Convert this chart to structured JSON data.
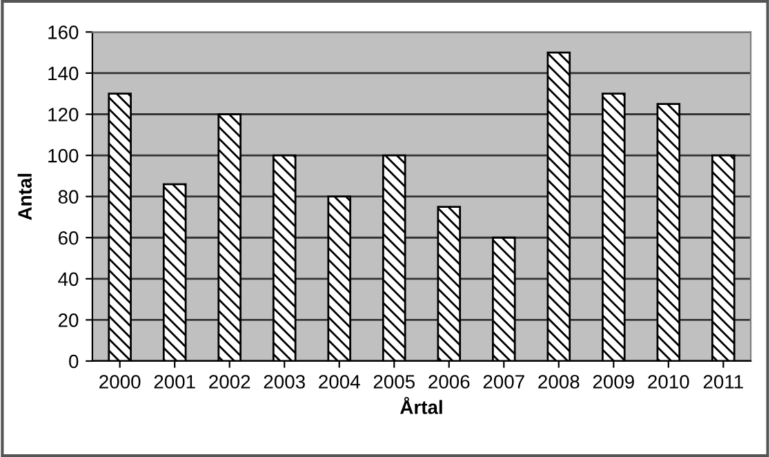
{
  "chart_data": {
    "type": "bar",
    "xlabel": "Årtal",
    "ylabel": "Antal",
    "categories": [
      "2000",
      "2001",
      "2002",
      "2003",
      "2004",
      "2005",
      "2006",
      "2007",
      "2008",
      "2009",
      "2010",
      "2011"
    ],
    "values": [
      130,
      86,
      120,
      100,
      80,
      100,
      75,
      60,
      150,
      130,
      125,
      100
    ],
    "color": "#000000",
    "ylim": [
      0,
      160
    ],
    "yticks": [
      0,
      20,
      40,
      60,
      80,
      100,
      120,
      140,
      160
    ],
    "grid": "y",
    "legend": false
  }
}
